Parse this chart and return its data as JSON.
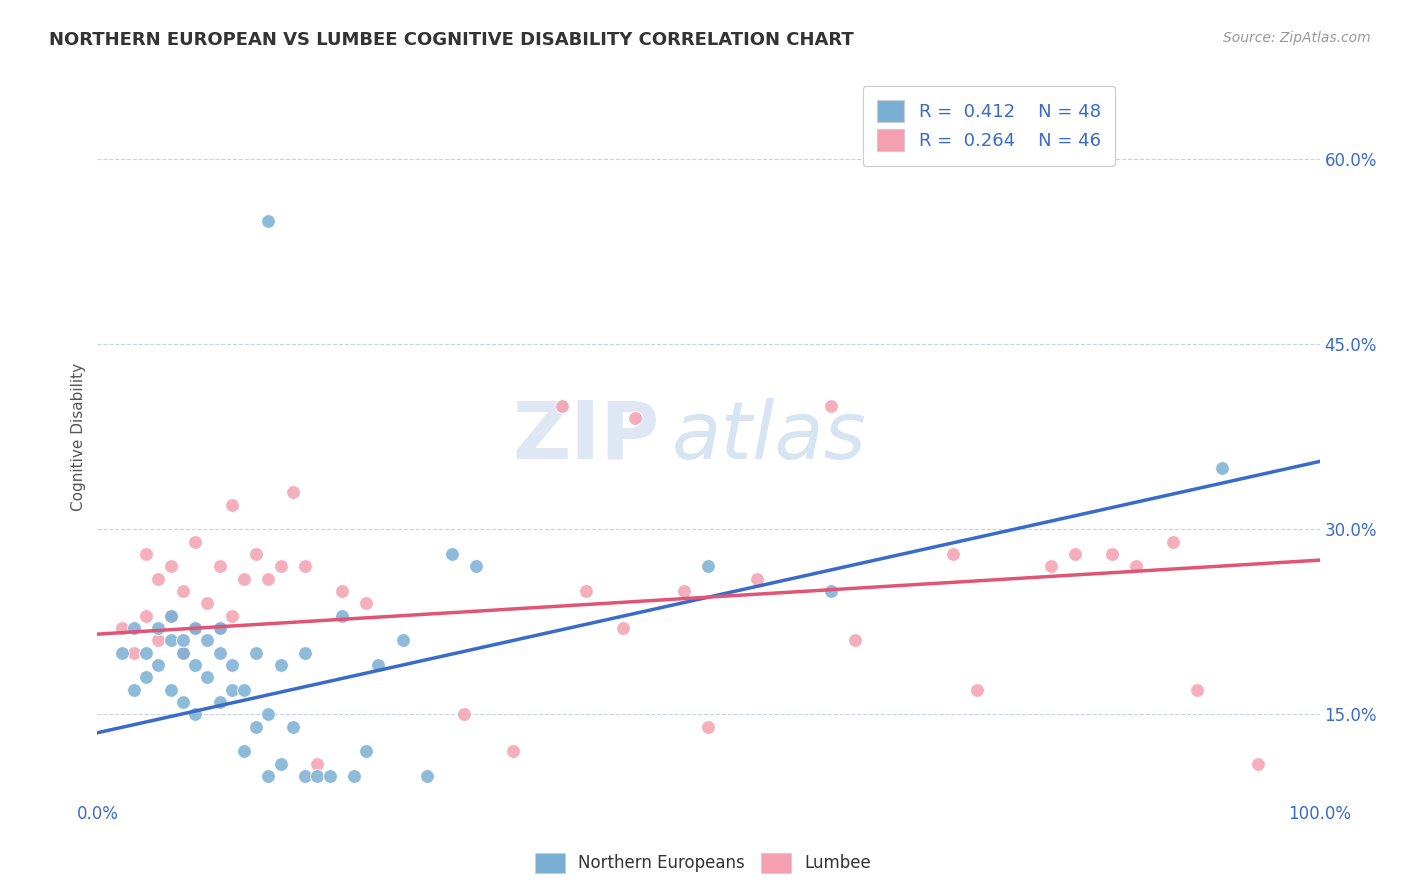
{
  "title": "NORTHERN EUROPEAN VS LUMBEE COGNITIVE DISABILITY CORRELATION CHART",
  "source": "Source: ZipAtlas.com",
  "ylabel": "Cognitive Disability",
  "xlim": [
    0.0,
    1.0
  ],
  "ylim": [
    0.08,
    0.67
  ],
  "ytick_positions": [
    0.15,
    0.3,
    0.45,
    0.6
  ],
  "ytick_labels": [
    "15.0%",
    "30.0%",
    "45.0%",
    "60.0%"
  ],
  "blue_color": "#7AAFD4",
  "pink_color": "#F4A0B0",
  "blue_line_color": "#3A6BC8",
  "pink_line_color": "#E05575",
  "legend_blue_label": "R =  0.412    N = 48",
  "legend_pink_label": "R =  0.264    N = 46",
  "legend_series1": "Northern Europeans",
  "legend_series2": "Lumbee",
  "watermark_zip": "ZIP",
  "watermark_atlas": "atlas",
  "blue_r": 0.412,
  "blue_n": 48,
  "pink_r": 0.264,
  "pink_n": 46,
  "blue_line_x0": 0.0,
  "blue_line_y0": 0.135,
  "blue_line_x1": 1.0,
  "blue_line_y1": 0.355,
  "pink_line_x0": 0.0,
  "pink_line_y0": 0.215,
  "pink_line_x1": 1.0,
  "pink_line_y1": 0.275,
  "blue_scatter_x": [
    0.02,
    0.03,
    0.03,
    0.04,
    0.04,
    0.05,
    0.05,
    0.06,
    0.06,
    0.06,
    0.07,
    0.07,
    0.07,
    0.08,
    0.08,
    0.08,
    0.09,
    0.09,
    0.1,
    0.1,
    0.1,
    0.11,
    0.11,
    0.12,
    0.12,
    0.13,
    0.13,
    0.14,
    0.14,
    0.15,
    0.15,
    0.16,
    0.17,
    0.17,
    0.18,
    0.19,
    0.2,
    0.21,
    0.22,
    0.23,
    0.25,
    0.27,
    0.29,
    0.31,
    0.5,
    0.6,
    0.14,
    0.92
  ],
  "blue_scatter_y": [
    0.2,
    0.17,
    0.22,
    0.2,
    0.18,
    0.22,
    0.19,
    0.21,
    0.17,
    0.23,
    0.2,
    0.16,
    0.21,
    0.19,
    0.15,
    0.22,
    0.18,
    0.21,
    0.16,
    0.2,
    0.22,
    0.17,
    0.19,
    0.12,
    0.17,
    0.14,
    0.2,
    0.1,
    0.15,
    0.11,
    0.19,
    0.14,
    0.1,
    0.2,
    0.1,
    0.1,
    0.23,
    0.1,
    0.12,
    0.19,
    0.21,
    0.1,
    0.28,
    0.27,
    0.27,
    0.25,
    0.55,
    0.35
  ],
  "pink_scatter_x": [
    0.02,
    0.03,
    0.04,
    0.04,
    0.05,
    0.05,
    0.06,
    0.06,
    0.07,
    0.07,
    0.08,
    0.08,
    0.09,
    0.1,
    0.1,
    0.11,
    0.11,
    0.12,
    0.13,
    0.14,
    0.15,
    0.16,
    0.17,
    0.18,
    0.2,
    0.22,
    0.3,
    0.34,
    0.38,
    0.43,
    0.44,
    0.48,
    0.5,
    0.54,
    0.6,
    0.62,
    0.7,
    0.72,
    0.78,
    0.8,
    0.83,
    0.85,
    0.88,
    0.9,
    0.95,
    0.4
  ],
  "pink_scatter_y": [
    0.22,
    0.2,
    0.23,
    0.28,
    0.21,
    0.26,
    0.23,
    0.27,
    0.2,
    0.25,
    0.22,
    0.29,
    0.24,
    0.22,
    0.27,
    0.23,
    0.32,
    0.26,
    0.28,
    0.26,
    0.27,
    0.33,
    0.27,
    0.11,
    0.25,
    0.24,
    0.15,
    0.12,
    0.4,
    0.22,
    0.39,
    0.25,
    0.14,
    0.26,
    0.4,
    0.21,
    0.28,
    0.17,
    0.27,
    0.28,
    0.28,
    0.27,
    0.29,
    0.17,
    0.11,
    0.25
  ]
}
